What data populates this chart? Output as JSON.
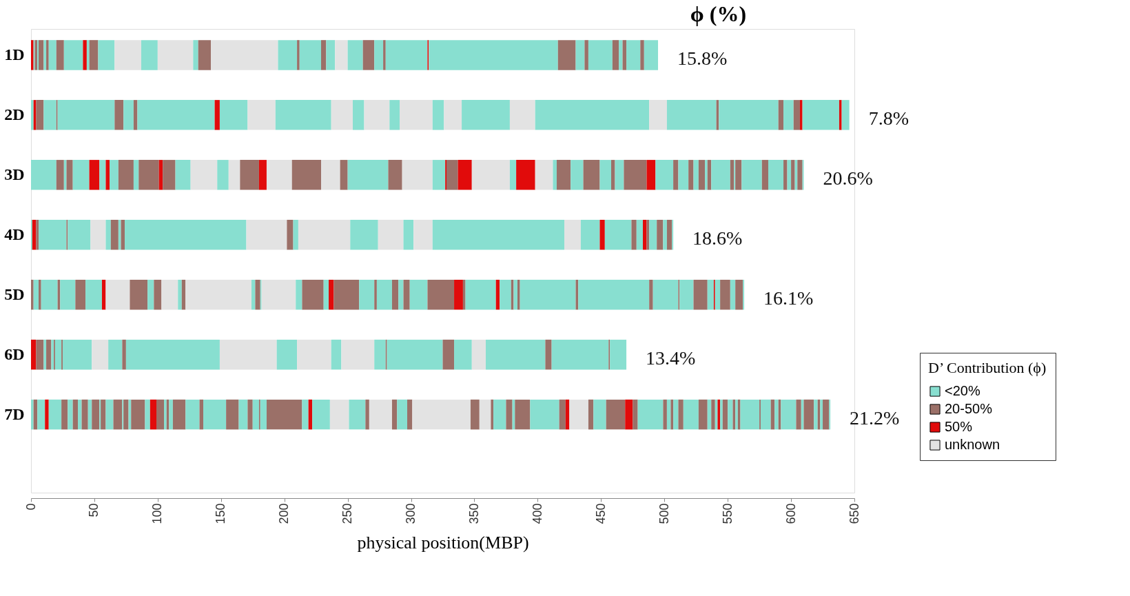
{
  "chart_data": {
    "type": "bar",
    "orientation": "horizontal",
    "stacked": true,
    "title": "ϕ (%)",
    "xlabel": "physical position(MBP)",
    "legend_title": "D’ Contribution (ϕ)",
    "legend": "right",
    "grid": false,
    "categories": [
      "1D",
      "2D",
      "3D",
      "4D",
      "5D",
      "6D",
      "7D"
    ],
    "xlim": [
      0,
      650
    ],
    "xticks": [
      0,
      50,
      100,
      150,
      200,
      250,
      300,
      350,
      400,
      450,
      500,
      550,
      600,
      650
    ],
    "annotations": [
      "15.8%",
      "7.8%",
      "20.6%",
      "18.6%",
      "16.1%",
      "13.4%",
      "21.2%"
    ],
    "series": [
      {
        "name": "<20%",
        "color": "#88dfd0",
        "values": [
          null,
          null,
          null,
          null,
          null,
          null,
          null
        ]
      },
      {
        "name": "20-50%",
        "color": "#9b7068",
        "values": [
          null,
          null,
          null,
          null,
          null,
          null,
          null
        ]
      },
      {
        "name": "50%",
        "color": "#e10b0b",
        "values": [
          null,
          null,
          null,
          null,
          null,
          null,
          null
        ]
      },
      {
        "name": "unknown",
        "color": "#e3e3e3",
        "values": [
          null,
          null,
          null,
          null,
          null,
          null,
          null
        ]
      },
      {
        "values": [
          2,
          2,
          20,
          1,
          2,
          4,
          2
        ],
        "colors": [
          "#e10b0b",
          "#88dfd0",
          "#88dfd0",
          "#88dfd0",
          "#9b7068",
          "#e10b0b",
          "#88dfd0"
        ]
      },
      {
        "values": [
          1,
          2,
          6,
          3,
          4,
          6,
          3
        ],
        "colors": [
          "#88dfd0",
          "#e10b0b",
          "#9b7068",
          "#e10b0b",
          "#88dfd0",
          "#9b7068",
          "#9b7068"
        ]
      },
      {
        "values": [
          2,
          6,
          2,
          2,
          2,
          2,
          6
        ],
        "colors": [
          "#9b7068",
          "#9b7068",
          "#88dfd0",
          "#9b7068",
          "#9b7068",
          "#88dfd0",
          "#88dfd0"
        ]
      },
      {
        "values": [
          1,
          10,
          5,
          22,
          13,
          4,
          3
        ],
        "colors": [
          "#88dfd0",
          "#88dfd0",
          "#9b7068",
          "#88dfd0",
          "#88dfd0",
          "#9b7068",
          "#e10b0b"
        ]
      },
      {
        "values": [
          4,
          1,
          13,
          1,
          2,
          2,
          10
        ],
        "colors": [
          "#9b7068",
          "#9b7068",
          "#88dfd0",
          "#9b7068",
          "#9b7068",
          "#88dfd0",
          "#88dfd0"
        ]
      },
      {
        "values": [
          2,
          45,
          8,
          18,
          12,
          1,
          5
        ],
        "colors": [
          "#88dfd0",
          "#88dfd0",
          "#e10b0b",
          "#88dfd0",
          "#88dfd0",
          "#9b7068",
          "#9b7068"
        ]
      },
      {
        "values": [
          2,
          7,
          5,
          12,
          8,
          5,
          4
        ],
        "colors": [
          "#9b7068",
          "#9b7068",
          "#88dfd0",
          "#e3e3e3",
          "#9b7068",
          "#88dfd0",
          "#88dfd0"
        ]
      },
      {
        "values": [
          6,
          8,
          3,
          4,
          13,
          1,
          4
        ],
        "colors": [
          "#88dfd0",
          "#88dfd0",
          "#e10b0b",
          "#88dfd0",
          "#88dfd0",
          "#9b7068",
          "#9b7068"
        ]
      },
      {
        "values": [
          6,
          3,
          7,
          6,
          3,
          23,
          3
        ],
        "colors": [
          "#9b7068",
          "#9b7068",
          "#88dfd0",
          "#9b7068",
          "#e10b0b",
          "#88dfd0",
          "#88dfd0"
        ]
      },
      {
        "values": [
          15,
          61,
          12,
          2,
          19,
          13,
          5
        ],
        "colors": [
          "#88dfd0",
          "#88dfd0",
          "#9b7068",
          "#88dfd0",
          "#e3e3e3",
          "#e3e3e3",
          "#9b7068"
        ]
      },
      {
        "values": [
          3,
          4,
          4,
          3,
          14,
          11,
          3
        ],
        "colors": [
          "#e10b0b",
          "#e10b0b",
          "#88dfd0",
          "#9b7068",
          "#9b7068",
          "#88dfd0",
          "#88dfd0"
        ]
      },
      {
        "values": [
          2,
          22,
          16,
          96,
          5,
          3,
          6
        ],
        "colors": [
          "#88dfd0",
          "#88dfd0",
          "#9b7068",
          "#88dfd0",
          "#88dfd0",
          "#9b7068",
          "#9b7068"
        ]
      },
      {
        "values": [
          7,
          22,
          3,
          32,
          6,
          74,
          1
        ],
        "colors": [
          "#9b7068",
          "#e3e3e3",
          "#e10b0b",
          "#e3e3e3",
          "#9b7068",
          "#88dfd0",
          "#88dfd0"
        ]
      },
      {
        "values": [
          13,
          44,
          10,
          5,
          13,
          45,
          4
        ],
        "colors": [
          "#88dfd0",
          "#88dfd0",
          "#9b7068",
          "#9b7068",
          "#e3e3e3",
          "#e3e3e3",
          "#9b7068"
        ]
      },
      {
        "values": [
          21,
          17,
          12,
          4,
          3,
          16,
          6
        ],
        "colors": [
          "#e3e3e3",
          "#e3e3e3",
          "#88dfd0",
          "#88dfd0",
          "#88dfd0",
          "#88dfd0",
          "#88dfd0"
        ]
      },
      {
        "values": [
          13,
          9,
          21,
          41,
          3,
          27,
          7
        ],
        "colors": [
          "#88dfd0",
          "#88dfd0",
          "#e3e3e3",
          "#e3e3e3",
          "#9b7068",
          "#e3e3e3",
          "#9b7068"
        ]
      },
      {
        "values": [
          28,
          20,
          9,
          22,
          52,
          8,
          1
        ],
        "colors": [
          "#e3e3e3",
          "#e3e3e3",
          "#88dfd0",
          "#88dfd0",
          "#e3e3e3",
          "#88dfd0",
          "#88dfd0"
        ]
      },
      {
        "values": [
          4,
          8,
          9,
          20,
          3,
          26,
          4
        ],
        "colors": [
          "#88dfd0",
          "#88dfd0",
          "#e3e3e3",
          "#e3e3e3",
          "#88dfd0",
          "#e3e3e3",
          "#9b7068"
        ]
      },
      {
        "values": [
          10,
          26,
          15,
          8,
          4,
          9,
          2
        ],
        "colors": [
          "#9b7068",
          "#e3e3e3",
          "#9b7068",
          "#88dfd0",
          "#9b7068",
          "#88dfd0",
          "#88dfd0"
        ]
      },
      {
        "values": [
          53,
          9,
          6,
          15,
          1,
          1,
          11
        ],
        "colors": [
          "#e3e3e3",
          "#88dfd0",
          "#e10b0b",
          "#e3e3e3",
          "#88dfd0",
          "#9b7068",
          "#9b7068"
        ]
      },
      {
        "values": [
          15,
          14,
          20,
          104,
          27,
          44,
          4
        ],
        "colors": [
          "#88dfd0",
          "#e3e3e3",
          "#e3e3e3",
          "#88dfd0",
          "#e3e3e3",
          "#88dfd0",
          "#88dfd0"
        ]
      },
      {
        "values": [
          2,
          38,
          23,
          13,
          5,
          9,
          5
        ],
        "colors": [
          "#9b7068",
          "#88dfd0",
          "#9b7068",
          "#e3e3e3",
          "#88dfd0",
          "#9b7068",
          "#e10b0b"
        ]
      },
      {
        "values": [
          17,
          20,
          15,
          15,
          17,
          14,
          6
        ],
        "colors": [
          "#88dfd0",
          "#e3e3e3",
          "#e3e3e3",
          "#88dfd0",
          "#9b7068",
          "#88dfd0",
          "#9b7068"
        ]
      },
      {
        "values": [
          4,
          90,
          6,
          4,
          4,
          11,
          2
        ],
        "colors": [
          "#9b7068",
          "#88dfd0",
          "#9b7068",
          "#e10b0b",
          "#88dfd0",
          "#e3e3e3",
          "#88dfd0"
        ]
      },
      {
        "values": [
          7,
          14,
          32,
          21,
          4,
          47,
          2
        ],
        "colors": [
          "#88dfd0",
          "#e3e3e3",
          "#88dfd0",
          "#88dfd0",
          "#e10b0b",
          "#88dfd0",
          "#9b7068"
        ]
      },
      {
        "values": [
          10,
          39,
          11,
          4,
          20,
          5,
          3
        ],
        "colors": [
          "#e3e3e3",
          "#88dfd0",
          "#9b7068",
          "#9b7068",
          "#9b7068",
          "#9b7068",
          "#88dfd0"
        ]
      },
      {
        "values": [
          12,
          2,
          24,
          5,
          12,
          45,
          10
        ],
        "colors": [
          "#88dfd0",
          "#9b7068",
          "#e3e3e3",
          "#88dfd0",
          "#88dfd0",
          "#88dfd0",
          "#9b7068"
        ]
      },
      {
        "values": [
          9,
          47,
          10,
          3,
          2,
          1,
          11
        ],
        "colors": [
          "#9b7068",
          "#88dfd0",
          "#88dfd0",
          "#e10b0b",
          "#9b7068",
          "#9b7068",
          "#88dfd0"
        ]
      },
      {
        "values": [
          7,
          4,
          1,
          2,
          12,
          13,
          3
        ],
        "colors": [
          "#88dfd0",
          "#9b7068",
          "#e10b0b",
          "#9b7068",
          "#88dfd0",
          "#88dfd0",
          "#9b7068"
        ]
      },
      {
        "values": [
          2,
          8,
          9,
          6,
          5,
          null,
          18
        ],
        "colors": [
          "#9b7068",
          "#88dfd0",
          "#9b7068",
          "#88dfd0",
          "#9b7068",
          null,
          "#88dfd0"
        ]
      },
      {
        "values": [
          33,
          5,
          11,
          5,
          4,
          null,
          10
        ],
        "colors": [
          "#88dfd0",
          "#9b7068",
          "#e10b0b",
          "#9b7068",
          "#88dfd0",
          null,
          "#9b7068"
        ]
      },
      {
        "values": [
          1,
          2,
          30,
          3,
          5,
          null,
          7
        ],
        "colors": [
          "#e10b0b",
          "#e10b0b",
          "#e3e3e3",
          "#88dfd0",
          "#9b7068",
          null,
          "#88dfd0"
        ]
      },
      {
        "values": [
          102,
          29,
          5,
          4,
          14,
          null,
          4
        ],
        "colors": [
          "#88dfd0",
          "#88dfd0",
          "#88dfd0",
          "#9b7068",
          "#88dfd0",
          null,
          "#9b7068"
        ]
      },
      {
        "values": [
          14,
          2,
          15,
          1,
          21,
          null,
          5
        ],
        "colors": [
          "#9b7068",
          "#e10b0b",
          "#e10b0b",
          "#88dfd0",
          "#9b7068",
          null,
          "#88dfd0"
        ]
      },
      {
        "values": [
          7,
          6,
          14,
          null,
          7,
          null,
          1
        ],
        "colors": [
          "#88dfd0",
          "#88dfd0",
          "#e3e3e3",
          null,
          "#e10b0b",
          null,
          "#9b7068"
        ]
      },
      {
        "values": [
          3,
          null,
          3,
          null,
          2,
          null,
          5
        ],
        "colors": [
          "#9b7068",
          null,
          "#88dfd0",
          null,
          "#9b7068",
          null,
          "#88dfd0"
        ]
      },
      {
        "values": [
          19,
          null,
          11,
          null,
          24,
          null,
          28
        ],
        "colors": [
          "#88dfd0",
          null,
          "#9b7068",
          null,
          "#88dfd0",
          null,
          "#9b7068"
        ]
      },
      {
        "values": [
          5,
          null,
          10,
          null,
          3,
          null,
          5
        ],
        "colors": [
          "#9b7068",
          null,
          "#88dfd0",
          null,
          "#e10b0b",
          null,
          "#88dfd0"
        ]
      },
      {
        "values": [
          3,
          null,
          13,
          null,
          9,
          null,
          3
        ],
        "colors": [
          "#88dfd0",
          null,
          "#9b7068",
          null,
          "#88dfd0",
          null,
          "#e10b0b"
        ]
      },
      {
        "values": [
          3,
          null,
          9,
          null,
          2,
          null,
          14
        ],
        "colors": [
          "#9b7068",
          null,
          "#88dfd0",
          null,
          "#9b7068",
          null,
          "#88dfd0"
        ]
      },
      {
        "values": [
          11,
          null,
          3,
          null,
          3,
          null,
          15
        ],
        "colors": [
          "#88dfd0",
          null,
          "#9b7068",
          null,
          "#88dfd0",
          null,
          "#e3e3e3"
        ]
      },
      {
        "values": [
          3,
          null,
          7,
          null,
          2,
          null,
          13
        ],
        "colors": [
          "#9b7068",
          null,
          "#88dfd0",
          null,
          "#9b7068",
          null,
          "#88dfd0"
        ]
      },
      {
        "values": [
          11,
          null,
          18,
          null,
          44,
          null,
          3
        ],
        "colors": [
          "#88dfd0",
          null,
          "#9b7068",
          null,
          "#88dfd0",
          null,
          "#9b7068"
        ]
      },
      {
        "values": [
          null,
          null,
          7,
          null,
          2,
          null,
          18
        ],
        "colors": [
          null,
          null,
          "#e10b0b",
          null,
          "#9b7068",
          null,
          "#e3e3e3"
        ]
      },
      {
        "values": [
          null,
          null,
          14,
          null,
          56,
          null,
          4
        ],
        "colors": [
          null,
          null,
          "#88dfd0",
          null,
          "#88dfd0",
          null,
          "#9b7068"
        ]
      },
      {
        "values": [
          null,
          null,
          4,
          null,
          3,
          null,
          8
        ],
        "colors": [
          null,
          null,
          "#9b7068",
          null,
          "#9b7068",
          null,
          "#88dfd0"
        ]
      },
      {
        "values": [
          null,
          null,
          8,
          null,
          20,
          null,
          4
        ],
        "colors": [
          null,
          null,
          "#88dfd0",
          null,
          "#88dfd0",
          null,
          "#9b7068"
        ]
      },
      {
        "values": [
          null,
          null,
          4,
          null,
          1,
          null,
          46
        ],
        "colors": [
          null,
          null,
          "#9b7068",
          null,
          "#9b7068",
          null,
          "#e3e3e3"
        ]
      },
      {
        "values": [
          null,
          null,
          4,
          null,
          11,
          null,
          7
        ],
        "colors": [
          null,
          null,
          "#88dfd0",
          null,
          "#88dfd0",
          null,
          "#9b7068"
        ]
      },
      {
        "values": [
          null,
          null,
          5,
          null,
          11,
          null,
          9
        ],
        "colors": [
          null,
          null,
          "#9b7068",
          null,
          "#9b7068",
          null,
          "#e3e3e3"
        ]
      },
      {
        "values": [
          null,
          null,
          2,
          null,
          5,
          null,
          2
        ],
        "colors": [
          null,
          null,
          "#88dfd0",
          null,
          "#88dfd0",
          null,
          "#9b7068"
        ]
      },
      {
        "values": [
          null,
          null,
          3,
          null,
          1,
          null,
          10
        ],
        "colors": [
          null,
          null,
          "#9b7068",
          null,
          "#e10b0b",
          null,
          "#88dfd0"
        ]
      },
      {
        "values": [
          null,
          null,
          15,
          null,
          4,
          null,
          5
        ],
        "colors": [
          null,
          null,
          "#88dfd0",
          null,
          "#88dfd0",
          null,
          "#9b7068"
        ]
      },
      {
        "values": [
          null,
          null,
          3,
          null,
          8,
          null,
          2
        ],
        "colors": [
          null,
          null,
          "#9b7068",
          null,
          "#9b7068",
          null,
          "#88dfd0"
        ]
      },
      {
        "values": [
          null,
          null,
          1,
          null,
          4,
          null,
          12
        ],
        "colors": [
          null,
          null,
          "#88dfd0",
          null,
          "#88dfd0",
          null,
          "#9b7068"
        ]
      },
      {
        "values": [
          null,
          null,
          5,
          null,
          6,
          null,
          23
        ],
        "colors": [
          null,
          null,
          "#9b7068",
          null,
          "#9b7068",
          null,
          "#88dfd0"
        ]
      },
      {
        "values": [
          null,
          null,
          16,
          null,
          1,
          null,
          5
        ],
        "colors": [
          null,
          null,
          "#88dfd0",
          null,
          "#88dfd0",
          null,
          "#9b7068"
        ]
      },
      {
        "values": [
          null,
          null,
          5,
          null,
          null,
          null,
          3
        ],
        "colors": [
          null,
          null,
          "#9b7068",
          null,
          null,
          null,
          "#e10b0b"
        ]
      },
      {
        "values": [
          null,
          null,
          12,
          null,
          null,
          null,
          15
        ],
        "colors": [
          null,
          null,
          "#88dfd0",
          null,
          null,
          null,
          "#e3e3e3"
        ]
      },
      {
        "values": [
          null,
          null,
          3,
          null,
          null,
          null,
          4
        ],
        "colors": [
          null,
          null,
          "#9b7068",
          null,
          null,
          null,
          "#9b7068"
        ]
      },
      {
        "values": [
          null,
          null,
          3,
          null,
          null,
          null,
          10
        ],
        "colors": [
          null,
          null,
          "#88dfd0",
          null,
          null,
          null,
          "#88dfd0"
        ]
      },
      {
        "values": [
          null,
          null,
          3,
          null,
          null,
          null,
          15
        ],
        "colors": [
          null,
          null,
          "#9b7068",
          null,
          null,
          null,
          "#9b7068"
        ]
      },
      {
        "values": [
          null,
          null,
          2,
          null,
          null,
          null,
          6
        ],
        "colors": [
          null,
          null,
          "#88dfd0",
          null,
          null,
          null,
          "#e10b0b"
        ]
      },
      {
        "values": [
          null,
          null,
          4,
          null,
          null,
          null,
          4
        ],
        "colors": [
          null,
          null,
          "#9b7068",
          null,
          null,
          null,
          "#9b7068"
        ]
      },
      {
        "values": [
          null,
          null,
          1,
          null,
          null,
          null,
          20
        ],
        "colors": [
          null,
          null,
          "#88dfd0",
          null,
          null,
          null,
          "#88dfd0"
        ]
      },
      {
        "values": [
          null,
          null,
          null,
          null,
          null,
          null,
          3
        ],
        "colors": [
          null,
          null,
          null,
          null,
          null,
          null,
          "#9b7068"
        ]
      },
      {
        "values": [
          null,
          null,
          null,
          null,
          null,
          null,
          3
        ],
        "colors": [
          null,
          null,
          null,
          null,
          null,
          null,
          "#88dfd0"
        ]
      },
      {
        "values": [
          null,
          null,
          null,
          null,
          null,
          null,
          2
        ],
        "colors": [
          null,
          null,
          null,
          null,
          null,
          null,
          "#9b7068"
        ]
      },
      {
        "values": [
          null,
          null,
          null,
          null,
          null,
          null,
          4
        ],
        "colors": [
          null,
          null,
          null,
          null,
          null,
          null,
          "#88dfd0"
        ]
      },
      {
        "values": [
          null,
          null,
          null,
          null,
          null,
          null,
          4
        ],
        "colors": [
          null,
          null,
          null,
          null,
          null,
          null,
          "#9b7068"
        ]
      },
      {
        "values": [
          null,
          null,
          null,
          null,
          null,
          null,
          12
        ],
        "colors": [
          null,
          null,
          null,
          null,
          null,
          null,
          "#88dfd0"
        ]
      },
      {
        "values": [
          null,
          null,
          null,
          null,
          null,
          null,
          7
        ],
        "colors": [
          null,
          null,
          null,
          null,
          null,
          null,
          "#9b7068"
        ]
      },
      {
        "values": [
          null,
          null,
          null,
          null,
          null,
          null,
          3
        ],
        "colors": [
          null,
          null,
          null,
          null,
          null,
          null,
          "#88dfd0"
        ]
      },
      {
        "values": [
          null,
          null,
          null,
          null,
          null,
          null,
          3
        ],
        "colors": [
          null,
          null,
          null,
          null,
          null,
          null,
          "#9b7068"
        ]
      },
      {
        "values": [
          null,
          null,
          null,
          null,
          null,
          null,
          2
        ],
        "colors": [
          null,
          null,
          null,
          null,
          null,
          null,
          "#88dfd0"
        ]
      },
      {
        "values": [
          null,
          null,
          null,
          null,
          null,
          null,
          2
        ],
        "colors": [
          null,
          null,
          null,
          null,
          null,
          null,
          "#e10b0b"
        ]
      },
      {
        "values": [
          null,
          null,
          null,
          null,
          null,
          null,
          2
        ],
        "colors": [
          null,
          null,
          null,
          null,
          null,
          null,
          "#88dfd0"
        ]
      },
      {
        "values": [
          null,
          null,
          null,
          null,
          null,
          null,
          4
        ],
        "colors": [
          null,
          null,
          null,
          null,
          null,
          null,
          "#9b7068"
        ]
      },
      {
        "values": [
          null,
          null,
          null,
          null,
          null,
          null,
          4
        ],
        "colors": [
          null,
          null,
          null,
          null,
          null,
          null,
          "#88dfd0"
        ]
      },
      {
        "values": [
          null,
          null,
          null,
          null,
          null,
          null,
          2
        ],
        "colors": [
          null,
          null,
          null,
          null,
          null,
          null,
          "#9b7068"
        ]
      },
      {
        "values": [
          null,
          null,
          null,
          null,
          null,
          null,
          2
        ],
        "colors": [
          null,
          null,
          null,
          null,
          null,
          null,
          "#88dfd0"
        ]
      },
      {
        "values": [
          null,
          null,
          null,
          null,
          null,
          null,
          2
        ],
        "colors": [
          null,
          null,
          null,
          null,
          null,
          null,
          "#9b7068"
        ]
      },
      {
        "values": [
          null,
          null,
          null,
          null,
          null,
          null,
          15
        ],
        "colors": [
          null,
          null,
          null,
          null,
          null,
          null,
          "#88dfd0"
        ]
      },
      {
        "values": [
          null,
          null,
          null,
          null,
          null,
          null,
          1
        ],
        "colors": [
          null,
          null,
          null,
          null,
          null,
          null,
          "#9b7068"
        ]
      },
      {
        "values": [
          null,
          null,
          null,
          null,
          null,
          null,
          8
        ],
        "colors": [
          null,
          null,
          null,
          null,
          null,
          null,
          "#88dfd0"
        ]
      },
      {
        "values": [
          null,
          null,
          null,
          null,
          null,
          null,
          3
        ],
        "colors": [
          null,
          null,
          null,
          null,
          null,
          null,
          "#9b7068"
        ]
      },
      {
        "values": [
          null,
          null,
          null,
          null,
          null,
          null,
          3
        ],
        "colors": [
          null,
          null,
          null,
          null,
          null,
          null,
          "#88dfd0"
        ]
      },
      {
        "values": [
          null,
          null,
          null,
          null,
          null,
          null,
          2
        ],
        "colors": [
          null,
          null,
          null,
          null,
          null,
          null,
          "#9b7068"
        ]
      },
      {
        "values": [
          null,
          null,
          null,
          null,
          null,
          null,
          12
        ],
        "colors": [
          null,
          null,
          null,
          null,
          null,
          null,
          "#88dfd0"
        ]
      },
      {
        "values": [
          null,
          null,
          null,
          null,
          null,
          null,
          4
        ],
        "colors": [
          null,
          null,
          null,
          null,
          null,
          null,
          "#9b7068"
        ]
      },
      {
        "values": [
          null,
          null,
          null,
          null,
          null,
          null,
          2
        ],
        "colors": [
          null,
          null,
          null,
          null,
          null,
          null,
          "#88dfd0"
        ]
      },
      {
        "values": [
          null,
          null,
          null,
          null,
          null,
          null,
          8
        ],
        "colors": [
          null,
          null,
          null,
          null,
          null,
          null,
          "#9b7068"
        ]
      },
      {
        "values": [
          null,
          null,
          null,
          null,
          null,
          null,
          3
        ],
        "colors": [
          null,
          null,
          null,
          null,
          null,
          null,
          "#88dfd0"
        ]
      },
      {
        "values": [
          null,
          null,
          null,
          null,
          null,
          null,
          2
        ],
        "colors": [
          null,
          null,
          null,
          null,
          null,
          null,
          "#9b7068"
        ]
      },
      {
        "values": [
          null,
          null,
          null,
          null,
          null,
          null,
          2
        ],
        "colors": [
          null,
          null,
          null,
          null,
          null,
          null,
          "#88dfd0"
        ]
      },
      {
        "values": [
          null,
          null,
          null,
          null,
          null,
          null,
          5
        ],
        "colors": [
          null,
          null,
          null,
          null,
          null,
          null,
          "#9b7068"
        ]
      },
      {
        "values": [
          null,
          null,
          null,
          null,
          null,
          null,
          1
        ],
        "colors": [
          null,
          null,
          null,
          null,
          null,
          null,
          "#88dfd0"
        ]
      }
    ]
  }
}
